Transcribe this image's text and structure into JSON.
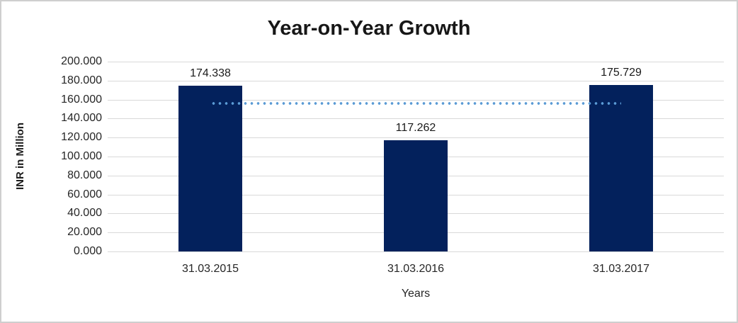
{
  "chart_data": {
    "type": "bar",
    "title": "Year-on-Year Growth",
    "xlabel": "Years",
    "ylabel": "INR in Million",
    "categories": [
      "31.03.2015",
      "31.03.2016",
      "31.03.2017"
    ],
    "values": [
      174.338,
      117.262,
      175.729
    ],
    "value_labels": [
      "174.338",
      "117.262",
      "175.729"
    ],
    "ylim": [
      0,
      200
    ],
    "y_ticks": [
      {
        "value": 0,
        "label": "0.000"
      },
      {
        "value": 20,
        "label": "20.000"
      },
      {
        "value": 40,
        "label": "40.000"
      },
      {
        "value": 60,
        "label": "60.000"
      },
      {
        "value": 80,
        "label": "80.000"
      },
      {
        "value": 100,
        "label": "100.000"
      },
      {
        "value": 120,
        "label": "120.000"
      },
      {
        "value": 140,
        "label": "140.000"
      },
      {
        "value": 160,
        "label": "160.000"
      },
      {
        "value": 180,
        "label": "180.000"
      },
      {
        "value": 200,
        "label": "200.000"
      }
    ],
    "grid": true,
    "legend": "none",
    "trendline": {
      "style": "dotted",
      "value": 155.776,
      "from_category_index": 0,
      "to_category_index": 2,
      "color": "#5B9BD5"
    },
    "colors": {
      "bar": "#03215C",
      "gridline": "#D9D9D9",
      "text": "#262626",
      "border": "#CFCFCF",
      "background": "#FFFFFF"
    }
  }
}
